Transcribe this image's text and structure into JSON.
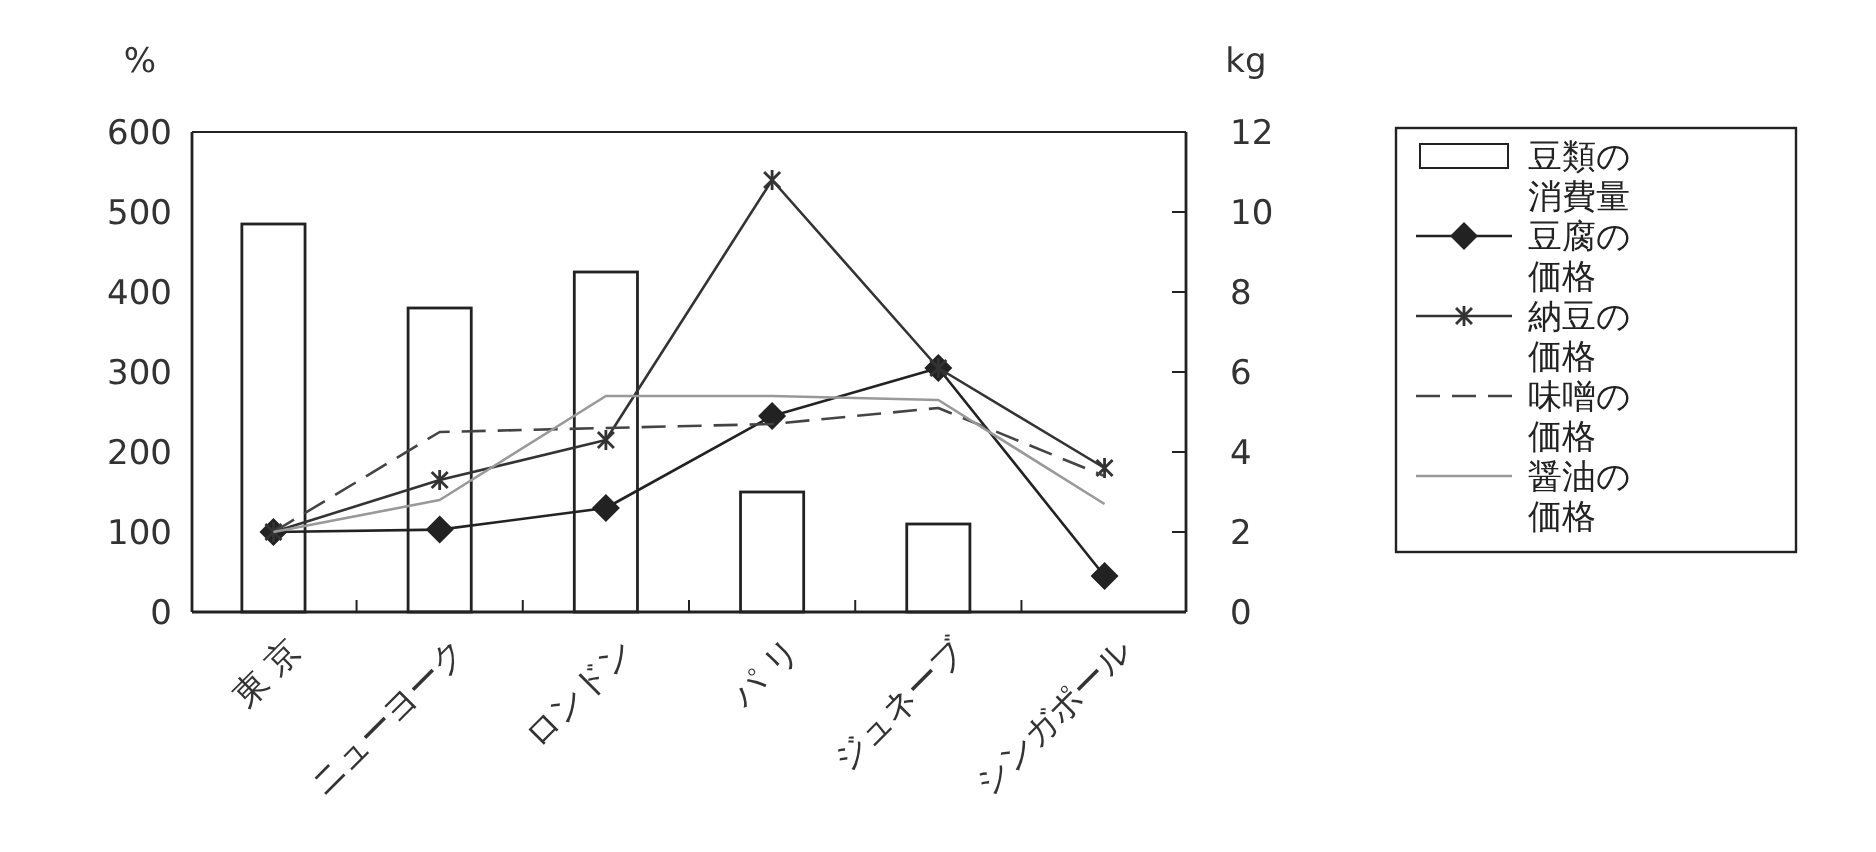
{
  "chart_data": {
    "type": "bar",
    "ylabel": "%",
    "y2label": "kg",
    "categories": [
      "東 京",
      "ニューヨーク",
      "ロンドン",
      "パ リ",
      "ジュネーブ",
      "シンガポール"
    ],
    "ylim": [
      0,
      600
    ],
    "yticks": [
      0,
      100,
      200,
      300,
      400,
      500,
      600
    ],
    "y2lim": [
      0,
      12
    ],
    "y2ticks": [
      0,
      2,
      4,
      6,
      8,
      10,
      12
    ],
    "grid": false,
    "legend": "right",
    "series": [
      {
        "name": "豆類の消費量",
        "axis": "y2",
        "color": "#ffffff",
        "values": [
          9.7,
          7.6,
          8.5,
          3.0,
          2.2,
          null
        ]
      },
      {
        "name": "豆腐の価格",
        "type": "line",
        "color": "#222222",
        "marker": "diamond",
        "line_style": "solid",
        "values": [
          100,
          103,
          130,
          245,
          305,
          45
        ]
      },
      {
        "name": "納豆の価格",
        "type": "line",
        "color": "#333333",
        "marker": "cross",
        "line_style": "solid",
        "values": [
          100,
          165,
          215,
          540,
          305,
          180
        ]
      },
      {
        "name": "味噌の価格",
        "type": "line",
        "color": "#444444",
        "marker": "none",
        "line_style": "dashed",
        "values": [
          100,
          225,
          230,
          235,
          255,
          170
        ]
      },
      {
        "name": "醤油の価格",
        "type": "line",
        "color": "#999999",
        "marker": "none",
        "line_style": "solid",
        "values": [
          100,
          140,
          270,
          270,
          265,
          135
        ]
      }
    ]
  }
}
